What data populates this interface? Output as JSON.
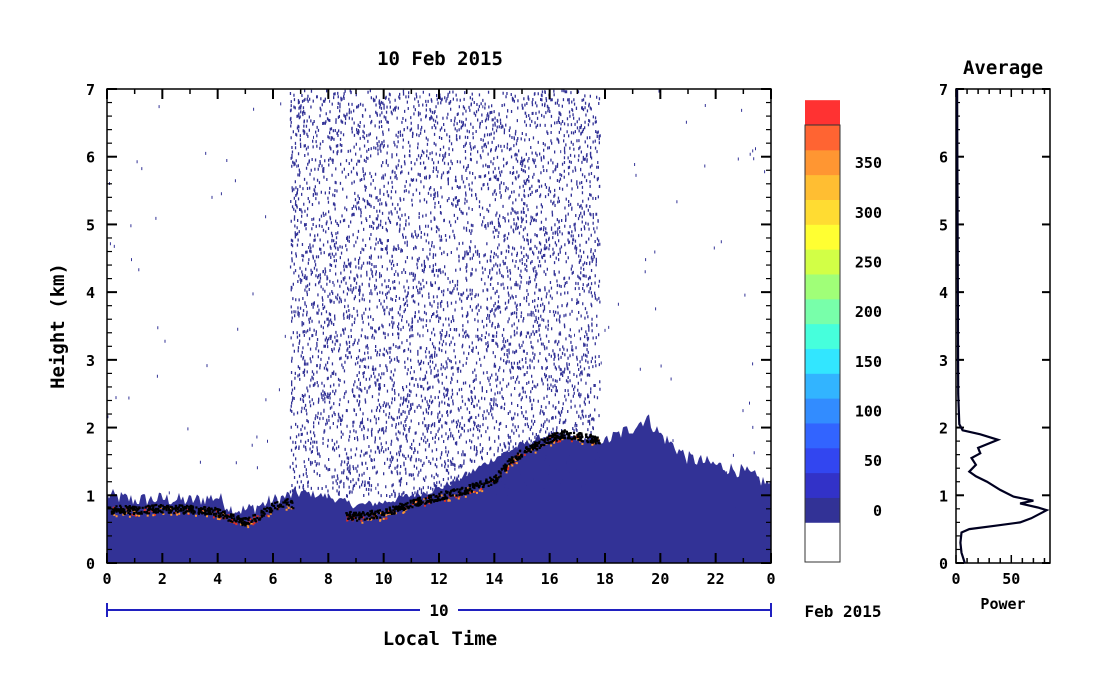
{
  "chart_data": [
    {
      "type": "heatmap",
      "title": "10 Feb 2015",
      "xlabel": "Local Time",
      "ylabel": "Height (km)",
      "x_ticks": [
        "0",
        "2",
        "4",
        "6",
        "8",
        "10",
        "12",
        "14",
        "16",
        "18",
        "20",
        "22",
        "0"
      ],
      "y_ticks": [
        "0",
        "1",
        "2",
        "3",
        "4",
        "5",
        "6",
        "7"
      ],
      "xlim": [
        0,
        24
      ],
      "ylim": [
        0,
        7
      ],
      "date_bar": {
        "label": "10",
        "suffix": "Feb 2015"
      },
      "colorbar": {
        "ticks": [
          "0",
          "50",
          "100",
          "150",
          "200",
          "250",
          "300",
          "350"
        ],
        "levels": [
          0,
          25,
          50,
          75,
          100,
          125,
          150,
          175,
          200,
          225,
          250,
          275,
          300,
          325,
          350,
          375
        ],
        "colors": [
          "#ffffff",
          "#323296",
          "#3232c8",
          "#3246f0",
          "#3264ff",
          "#328cff",
          "#32b4ff",
          "#32e6ff",
          "#46ffdc",
          "#78ffaa",
          "#a0ff78",
          "#d2ff46",
          "#ffff32",
          "#ffdc32",
          "#ffbe32",
          "#ff9632",
          "#ff6432",
          "#ff3232"
        ]
      },
      "noise_band_hours": [
        6.6,
        17.8
      ],
      "boundary_layer_top_km": [
        {
          "x": 0,
          "y": 1.0
        },
        {
          "x": 1,
          "y": 0.93
        },
        {
          "x": 2,
          "y": 0.95
        },
        {
          "x": 3,
          "y": 0.92
        },
        {
          "x": 4,
          "y": 0.98
        },
        {
          "x": 4.5,
          "y": 0.8
        },
        {
          "x": 5,
          "y": 0.78
        },
        {
          "x": 6,
          "y": 0.92
        },
        {
          "x": 7,
          "y": 1.05
        },
        {
          "x": 8,
          "y": 0.98
        },
        {
          "x": 9,
          "y": 0.85
        },
        {
          "x": 10,
          "y": 0.9
        },
        {
          "x": 11,
          "y": 1.0
        },
        {
          "x": 12,
          "y": 1.1
        },
        {
          "x": 13,
          "y": 1.3
        },
        {
          "x": 14,
          "y": 1.55
        },
        {
          "x": 15,
          "y": 1.75
        },
        {
          "x": 16,
          "y": 1.9
        },
        {
          "x": 17,
          "y": 1.85
        },
        {
          "x": 18,
          "y": 1.8
        },
        {
          "x": 19,
          "y": 2.0
        },
        {
          "x": 19.5,
          "y": 2.15
        },
        {
          "x": 20,
          "y": 1.9
        },
        {
          "x": 21,
          "y": 1.55
        },
        {
          "x": 22,
          "y": 1.45
        },
        {
          "x": 23,
          "y": 1.35
        },
        {
          "x": 24,
          "y": 1.15
        }
      ],
      "strong_layer_km": [
        {
          "x": 0,
          "y": 0.8
        },
        {
          "x": 1,
          "y": 0.8
        },
        {
          "x": 2,
          "y": 0.82
        },
        {
          "x": 3,
          "y": 0.8
        },
        {
          "x": 3.8,
          "y": 0.78
        },
        {
          "x": 4.5,
          "y": 0.68
        },
        {
          "x": 5,
          "y": 0.62
        },
        {
          "x": 5.5,
          "y": 0.72
        },
        {
          "x": 6,
          "y": 0.85
        },
        {
          "x": 6.5,
          "y": 0.9
        },
        {
          "x": 9,
          "y": 0.7
        },
        {
          "x": 10,
          "y": 0.75
        },
        {
          "x": 11,
          "y": 0.9
        },
        {
          "x": 12,
          "y": 1.0
        },
        {
          "x": 13,
          "y": 1.1
        },
        {
          "x": 14,
          "y": 1.25
        },
        {
          "x": 14.5,
          "y": 1.5
        },
        {
          "x": 15,
          "y": 1.65
        },
        {
          "x": 16,
          "y": 1.85
        },
        {
          "x": 16.5,
          "y": 1.92
        },
        {
          "x": 17,
          "y": 1.88
        },
        {
          "x": 17.8,
          "y": 1.83
        }
      ]
    },
    {
      "type": "line",
      "title": "Average",
      "xlabel": "Power",
      "x_ticks": [
        "0",
        "50"
      ],
      "y_ticks": [
        "0",
        "1",
        "2",
        "3",
        "4",
        "5",
        "6",
        "7"
      ],
      "xlim": [
        0,
        85
      ],
      "ylim": [
        0,
        7
      ],
      "profile": [
        {
          "x": 8,
          "y": 0.0
        },
        {
          "x": 5,
          "y": 0.15
        },
        {
          "x": 4,
          "y": 0.3
        },
        {
          "x": 5,
          "y": 0.45
        },
        {
          "x": 12,
          "y": 0.5
        },
        {
          "x": 35,
          "y": 0.55
        },
        {
          "x": 58,
          "y": 0.6
        },
        {
          "x": 68,
          "y": 0.66
        },
        {
          "x": 82,
          "y": 0.78
        },
        {
          "x": 74,
          "y": 0.82
        },
        {
          "x": 58,
          "y": 0.88
        },
        {
          "x": 70,
          "y": 0.92
        },
        {
          "x": 52,
          "y": 0.98
        },
        {
          "x": 40,
          "y": 1.08
        },
        {
          "x": 28,
          "y": 1.2
        },
        {
          "x": 18,
          "y": 1.28
        },
        {
          "x": 12,
          "y": 1.35
        },
        {
          "x": 18,
          "y": 1.45
        },
        {
          "x": 14,
          "y": 1.55
        },
        {
          "x": 22,
          "y": 1.62
        },
        {
          "x": 20,
          "y": 1.7
        },
        {
          "x": 38,
          "y": 1.82
        },
        {
          "x": 22,
          "y": 1.9
        },
        {
          "x": 6,
          "y": 1.96
        },
        {
          "x": 3,
          "y": 2.05
        },
        {
          "x": 2,
          "y": 2.5
        },
        {
          "x": 1,
          "y": 7
        }
      ]
    }
  ]
}
